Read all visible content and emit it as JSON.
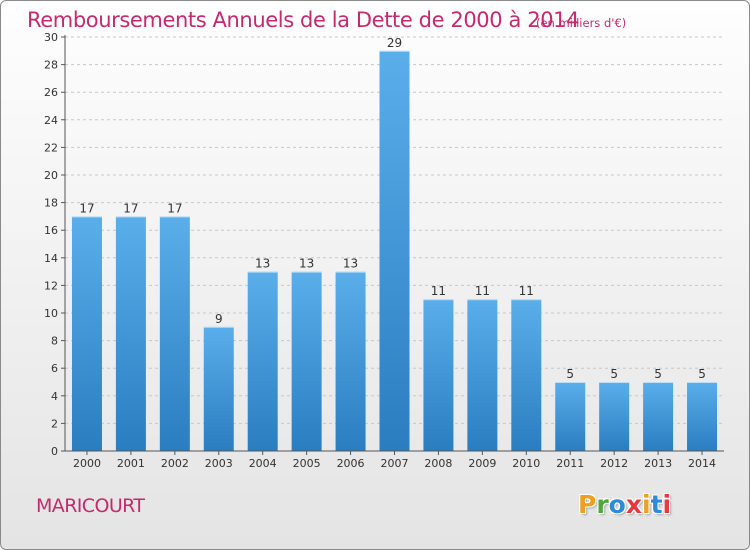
{
  "header": {
    "title": "Remboursements Annuels de la Dette de 2000 à 2014",
    "unit": "(en milliers d'€)"
  },
  "footer": {
    "commune": "MARICOURT",
    "logo": "Proxiti",
    "logo_colors": [
      "#f0a020",
      "#4fa83d",
      "#2e8bd8",
      "#e8373e",
      "#f0a020",
      "#2e8bd8",
      "#e8373e"
    ]
  },
  "chart_data": {
    "type": "bar",
    "title": "Remboursements Annuels de la Dette de 2000 à 2014",
    "categories": [
      "2000",
      "2001",
      "2002",
      "2003",
      "2004",
      "2005",
      "2006",
      "2007",
      "2008",
      "2009",
      "2010",
      "2011",
      "2012",
      "2013",
      "2014"
    ],
    "values": [
      17,
      17,
      17,
      9,
      13,
      13,
      13,
      29,
      11,
      11,
      11,
      5,
      5,
      5,
      5
    ],
    "ylim": [
      0,
      30
    ],
    "yticks": [
      0,
      2,
      4,
      6,
      8,
      10,
      12,
      14,
      16,
      18,
      20,
      22,
      24,
      26,
      28,
      30
    ],
    "grid": true,
    "bar_color_top": "#5aaeea",
    "bar_color_bottom": "#2a7ec0"
  }
}
